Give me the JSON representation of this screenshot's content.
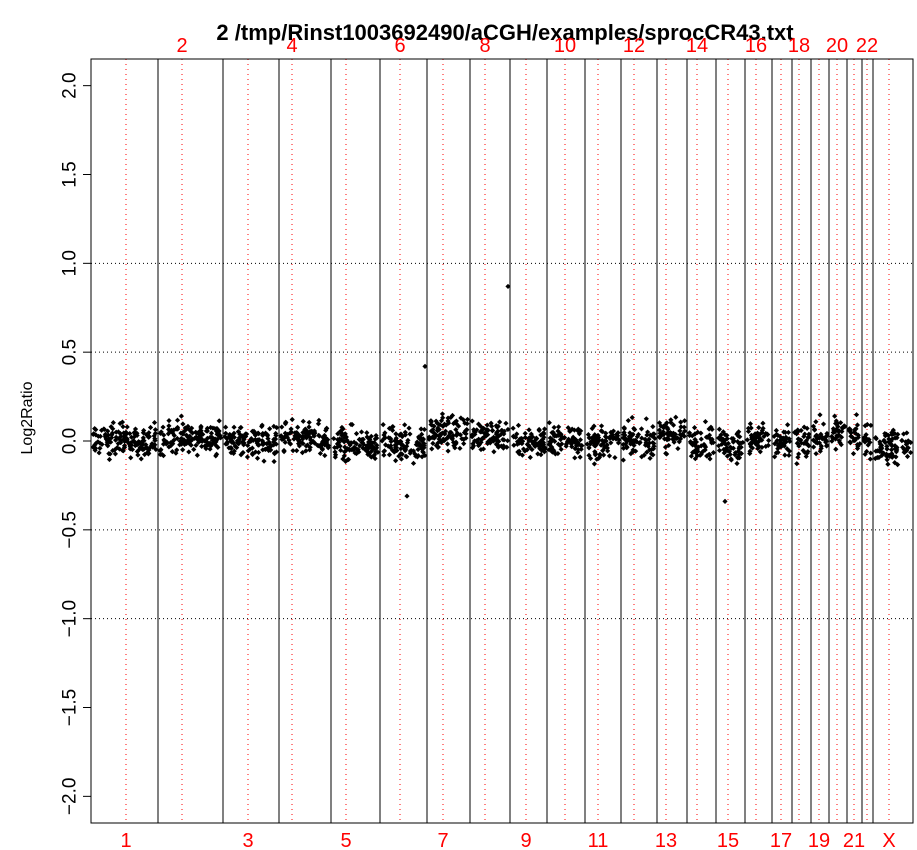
{
  "chart_data": {
    "type": "scatter",
    "title": "2   /tmp/Rinst1003692490/aCGH/examples/sprocCR43.txt",
    "xlabel": "",
    "ylabel": "Log2Ratio",
    "ylim": [
      -2.15,
      2.15
    ],
    "yticks": [
      -2.0,
      -1.5,
      -1.0,
      -0.5,
      0.0,
      0.5,
      1.0,
      1.5,
      2.0
    ],
    "yticks_labels": [
      "−2.0",
      "−1.5",
      "−1.0",
      "−0.5",
      "0.0",
      "0.5",
      "1.0",
      "1.5",
      "2.0"
    ],
    "hgrid": [
      -1.0,
      -0.5,
      0.5,
      1.0
    ],
    "grid": true,
    "colors": {
      "points": "#000000",
      "chromosome_labels": "#ff0000",
      "centromere_lines": "#ff0000",
      "grid": "#000000"
    },
    "chromosomes": [
      {
        "name": "1",
        "label_position": "bottom"
      },
      {
        "name": "2",
        "label_position": "top"
      },
      {
        "name": "3",
        "label_position": "bottom"
      },
      {
        "name": "4",
        "label_position": "top"
      },
      {
        "name": "5",
        "label_position": "bottom"
      },
      {
        "name": "6",
        "label_position": "top"
      },
      {
        "name": "7",
        "label_position": "bottom"
      },
      {
        "name": "8",
        "label_position": "top"
      },
      {
        "name": "9",
        "label_position": "bottom"
      },
      {
        "name": "10",
        "label_position": "top"
      },
      {
        "name": "11",
        "label_position": "bottom"
      },
      {
        "name": "12",
        "label_position": "top"
      },
      {
        "name": "13",
        "label_position": "bottom"
      },
      {
        "name": "14",
        "label_position": "top"
      },
      {
        "name": "15",
        "label_position": "bottom"
      },
      {
        "name": "16",
        "label_position": "top"
      },
      {
        "name": "17",
        "label_position": "bottom"
      },
      {
        "name": "18",
        "label_position": "top"
      },
      {
        "name": "19",
        "label_position": "bottom"
      },
      {
        "name": "20",
        "label_position": "top"
      },
      {
        "name": "21",
        "label_position": "bottom"
      },
      {
        "name": "22",
        "label_position": "top"
      },
      {
        "name": "X",
        "label_position": "bottom"
      }
    ],
    "points_summary": "approx. 1900 clones, Log2Ratio mostly between -0.2 and 0.2",
    "outliers": [
      {
        "chromosome": "6",
        "y": 0.42
      },
      {
        "chromosome": "6",
        "y": -0.31
      },
      {
        "chromosome": "8",
        "y": 0.87
      },
      {
        "chromosome": "15",
        "y": -0.34
      }
    ],
    "chrom_mean": {
      "1": 0.0,
      "2": 0.02,
      "3": 0.0,
      "4": 0.01,
      "5": -0.02,
      "6": -0.02,
      "7": 0.05,
      "8": 0.03,
      "9": 0.0,
      "10": 0.0,
      "11": -0.01,
      "12": 0.0,
      "13": 0.04,
      "14": 0.0,
      "15": -0.02,
      "16": 0.01,
      "17": -0.02,
      "18": -0.01,
      "19": 0.02,
      "20": 0.04,
      "21": 0.02,
      "22": 0.01,
      "X": -0.03
    }
  }
}
